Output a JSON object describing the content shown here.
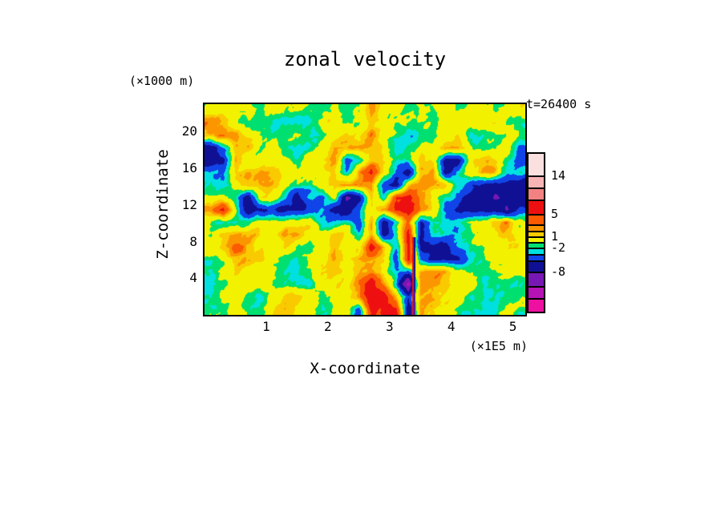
{
  "title": "zonal velocity",
  "annotation": "t=26400 s",
  "x_axis": {
    "label": "X-coordinate",
    "units": "(×1E5 m)",
    "ticks": [
      1,
      2,
      3,
      4,
      5
    ],
    "range": [
      0,
      5.2
    ]
  },
  "z_axis": {
    "label": "Z-coordinate",
    "units": "(×1000 m)",
    "ticks": [
      20,
      16,
      12,
      8,
      4
    ],
    "range": [
      0,
      23
    ]
  },
  "colorbar": {
    "segments_top_to_bottom": [
      {
        "color": "#fbe0e0",
        "height": 27
      },
      {
        "color": "#f8b4b4",
        "height": 15
      },
      {
        "color": "#f28282",
        "height": 15
      },
      {
        "color": "#ee1010",
        "height": 18
      },
      {
        "color": "#fc5a00",
        "height": 13
      },
      {
        "color": "#fc9600",
        "height": 8
      },
      {
        "color": "#faca00",
        "height": 7
      },
      {
        "color": "#f2f200",
        "height": 7
      },
      {
        "color": "#00e070",
        "height": 7
      },
      {
        "color": "#00e0e0",
        "height": 8
      },
      {
        "color": "#1144e8",
        "height": 8
      },
      {
        "color": "#101095",
        "height": 14
      },
      {
        "color": "#7718b4",
        "height": 18
      },
      {
        "color": "#b513b5",
        "height": 15
      },
      {
        "color": "#ee10a0",
        "height": 17
      }
    ],
    "labels": [
      {
        "value": "14",
        "after_segment": 0
      },
      {
        "value": "5",
        "after_segment": 3
      },
      {
        "value": "1",
        "after_segment": 6
      },
      {
        "value": "-2",
        "after_segment": 8
      },
      {
        "value": "-8",
        "after_segment": 11
      }
    ]
  },
  "chart_data": {
    "type": "heatmap",
    "title": "zonal velocity",
    "xlabel": "X-coordinate",
    "ylabel": "Z-coordinate",
    "x_units": "×1E5 m",
    "z_units": "×1000 m",
    "time_label": "t=26400 s",
    "x_range": [
      0,
      5.2
    ],
    "z_range": [
      0,
      23
    ],
    "levels": [
      -14,
      -11,
      -8,
      -5,
      -3,
      -2,
      -1,
      1,
      2,
      3,
      5,
      8,
      11,
      14
    ],
    "palette_low_to_high": [
      "#ee10a0",
      "#b513b5",
      "#7718b4",
      "#101095",
      "#1144e8",
      "#00e0e0",
      "#00e070",
      "#f2f200",
      "#faca00",
      "#fc9600",
      "#fc5a00",
      "#ee1010",
      "#f28282",
      "#f8b4b4",
      "#fbe0e0"
    ],
    "code_values": {
      "W": 15.5,
      "K": 12,
      "S": 9,
      "E": 6,
      "R": 4,
      "O": 2.5,
      "A": 1.5,
      "Y": 0,
      "G": -1.5,
      "C": -2.5,
      "B": -4,
      "N": -6.5,
      "P": -9,
      "M": -12.5,
      "F": -16
    },
    "grid_rows_top_to_bottom": [
      "YYYYGYGGGGYGGOYGGYGYGYYGYY",
      "OAYGGGGGGYYGGAYGGGGYYGYYGG",
      "OOAYGGGYGGYAYOYGCGGYAGCGYG",
      "NBAAGYGCGYOOAAYCGYYOOYCGAB",
      "NNOYYYYGYAOBCAYGGAYNNYAAGB",
      "CCAOOAYYGYACOEACNAONCYAACG",
      "GCYOOAYGCYAOOOBNAOOACBNNNN",
      "YYGNAYCNCBYPNACEEOACBNNPNN",
      "OEYNNBNNBCNNBYOEEOABNNNNPB",
      "GGGGYYYYYCCCBONCONCCCGYAOY",
      "GOOOAYOOYYAYCONCENCCCGYYAY",
      "YAROAYAGGYAYYEACENBNBCGYYA",
      "GYOOAYGCGYOAOOABEBNNNCGYYY",
      "GYAYYGCCGAAYAOYCBAOAYGGGYY",
      "GGYYYGCCGAAYOEACMOAAYYGGGG",
      "GYYGGYAAYGYYOEEOBOAYYGGGGG",
      "GGYGGYOAYGYYBEEENOAYGGGGYG"
    ],
    "front": {
      "x": 3.39,
      "z_top": 8.5
    },
    "noise": {
      "octaves": [
        [
          22,
          0.9
        ],
        [
          9,
          0.55
        ],
        [
          4,
          0.3
        ]
      ],
      "shear": 0.45
    }
  }
}
